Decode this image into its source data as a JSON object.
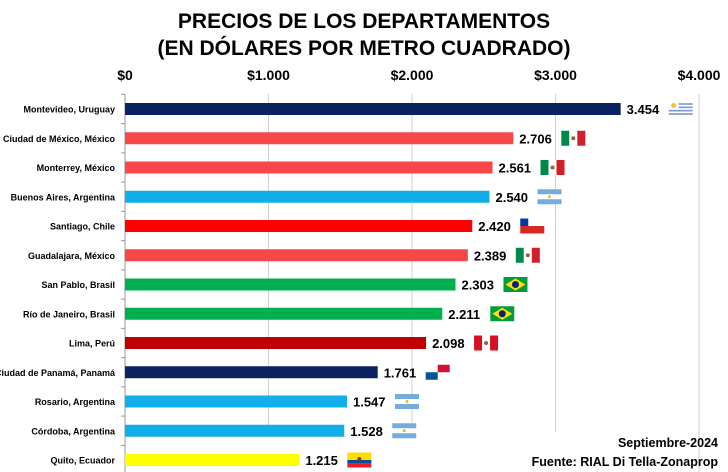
{
  "chart_data": {
    "type": "bar",
    "orientation": "horizontal",
    "title": "PRECIOS DE LOS DEPARTAMENTOS",
    "subtitle": "(EN DÓLARES POR METRO CUADRADO)",
    "xlim": [
      0,
      4000
    ],
    "x_ticks": [
      0,
      1000,
      2000,
      3000,
      4000
    ],
    "x_tick_labels": [
      "$0",
      "$1.000",
      "$2.000",
      "$3.000",
      "$4.000"
    ],
    "x_axis_position": "top",
    "grid": true,
    "categories": [
      "Montevideo, Uruguay",
      "Ciudad de México, México",
      "Monterrey, México",
      "Buenos Aires, Argentina",
      "Santiago, Chile",
      "Guadalajara, México",
      "San Pablo, Brasil",
      "Río de Janeiro, Brasil",
      "Lima, Perú",
      "Ciudad de Panamá, Panamá",
      "Rosario, Argentina",
      "Córdoba, Argentina",
      "Quito, Ecuador"
    ],
    "values": [
      3454,
      2706,
      2561,
      2540,
      2420,
      2389,
      2303,
      2211,
      2098,
      1761,
      1547,
      1528,
      1215
    ],
    "value_labels": [
      "3.454",
      "2.706",
      "2.561",
      "2.540",
      "2.420",
      "2.389",
      "2.303",
      "2.211",
      "2.098",
      "1.761",
      "1.547",
      "1.528",
      "1.215"
    ],
    "colors": [
      "#0b2260",
      "#f8474b",
      "#f8474b",
      "#12aeea",
      "#fe0000",
      "#f8474b",
      "#00af50",
      "#00af50",
      "#c00000",
      "#0b2260",
      "#12aeea",
      "#12aeea",
      "#ffff00"
    ],
    "flags": [
      "uruguay-flag",
      "mexico-flag",
      "mexico-flag",
      "argentina-flag",
      "chile-flag",
      "mexico-flag",
      "brazil-flag",
      "brazil-flag",
      "peru-flag",
      "panama-flag",
      "argentina-flag",
      "argentina-flag",
      "ecuador-flag"
    ],
    "annotations": [
      "Septiembre-2024",
      "Fuente: RIAL Di Tella-Zonaprop"
    ]
  }
}
